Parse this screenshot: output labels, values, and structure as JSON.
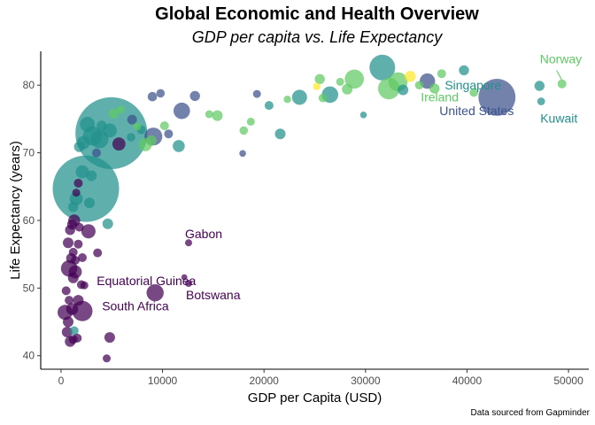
{
  "chart_data": {
    "type": "scatter",
    "title": "Global Economic and Health Overview",
    "subtitle": "GDP per capita vs. Life Expectancy",
    "xlabel": "GDP per Capita (USD)",
    "ylabel": "Life Expectancy (years)",
    "caption": "Data sourced from Gapminder",
    "xlim": [
      -2000,
      52000
    ],
    "ylim": [
      38,
      85
    ],
    "x_ticks": [
      0,
      10000,
      20000,
      30000,
      40000,
      50000
    ],
    "y_ticks": [
      40,
      50,
      60,
      70,
      80
    ],
    "grid": false,
    "legend": "none",
    "colors": {
      "purple": "#440154",
      "blue": "#3b528b",
      "teal": "#21908c",
      "green": "#5ec962",
      "yellow": "#fde725"
    },
    "points": [
      {
        "x": 49357,
        "y": 80.2,
        "size": 4.6,
        "color": "#5ec962",
        "label": "Norway"
      },
      {
        "x": 47143,
        "y": 79.9,
        "size": 8,
        "color": "#21908c",
        "label": "Singapore"
      },
      {
        "x": 40676,
        "y": 78.9,
        "size": 4,
        "color": "#5ec962",
        "label": "Ireland"
      },
      {
        "x": 42952,
        "y": 78.2,
        "size": 300,
        "color": "#3b528b",
        "label": "United States"
      },
      {
        "x": 47307,
        "y": 77.6,
        "size": 2.5,
        "color": "#21908c",
        "label": "Kuwait"
      },
      {
        "x": 12570,
        "y": 56.7,
        "size": 1.5,
        "color": "#440154",
        "label": "Gabon"
      },
      {
        "x": 12154,
        "y": 51.6,
        "size": 0.5,
        "color": "#440154",
        "label": "Equatorial Guinea"
      },
      {
        "x": 12569,
        "y": 50.7,
        "size": 1.6,
        "color": "#440154",
        "label": "Botswana"
      },
      {
        "x": 9270,
        "y": 49.3,
        "size": 44,
        "color": "#440154",
        "label": "South Africa"
      },
      {
        "x": 4960,
        "y": 72.9,
        "size": 1300,
        "color": "#21908c"
      },
      {
        "x": 2452,
        "y": 64.7,
        "size": 1100,
        "color": "#21908c"
      },
      {
        "x": 31656,
        "y": 82.6,
        "size": 127,
        "color": "#21908c"
      },
      {
        "x": 34400,
        "y": 81.3,
        "size": 12,
        "color": "#fde725"
      },
      {
        "x": 25500,
        "y": 80.9,
        "size": 8,
        "color": "#5ec962"
      },
      {
        "x": 28900,
        "y": 80.9,
        "size": 60,
        "color": "#5ec962"
      },
      {
        "x": 32300,
        "y": 79.5,
        "size": 82,
        "color": "#5ec962"
      },
      {
        "x": 33200,
        "y": 80.5,
        "size": 60,
        "color": "#5ec962"
      },
      {
        "x": 36100,
        "y": 80.6,
        "size": 33,
        "color": "#3b528b"
      },
      {
        "x": 26500,
        "y": 78.6,
        "size": 40,
        "color": "#21908c"
      },
      {
        "x": 23500,
        "y": 78.2,
        "size": 30,
        "color": "#21908c"
      },
      {
        "x": 36800,
        "y": 79.5,
        "size": 8,
        "color": "#5ec962"
      },
      {
        "x": 39700,
        "y": 82.2,
        "size": 8,
        "color": "#21908c"
      },
      {
        "x": 37500,
        "y": 81.7,
        "size": 5,
        "color": "#5ec962"
      },
      {
        "x": 33700,
        "y": 79.3,
        "size": 10,
        "color": "#21908c"
      },
      {
        "x": 35300,
        "y": 80.0,
        "size": 4,
        "color": "#5ec962"
      },
      {
        "x": 29800,
        "y": 75.6,
        "size": 1,
        "color": "#21908c"
      },
      {
        "x": 25200,
        "y": 79.8,
        "size": 2,
        "color": "#fde725"
      },
      {
        "x": 28200,
        "y": 79.4,
        "size": 10,
        "color": "#5ec962"
      },
      {
        "x": 27500,
        "y": 80.5,
        "size": 3,
        "color": "#5ec962"
      },
      {
        "x": 22300,
        "y": 77.9,
        "size": 2,
        "color": "#5ec962"
      },
      {
        "x": 20500,
        "y": 77.0,
        "size": 5,
        "color": "#21908c"
      },
      {
        "x": 18000,
        "y": 73.3,
        "size": 4,
        "color": "#5ec962"
      },
      {
        "x": 18700,
        "y": 74.6,
        "size": 3,
        "color": "#5ec962"
      },
      {
        "x": 19300,
        "y": 78.7,
        "size": 3,
        "color": "#3b528b"
      },
      {
        "x": 21600,
        "y": 72.8,
        "size": 10,
        "color": "#21908c"
      },
      {
        "x": 25800,
        "y": 78.1,
        "size": 4,
        "color": "#5ec962"
      },
      {
        "x": 17900,
        "y": 69.9,
        "size": 1,
        "color": "#3b528b"
      },
      {
        "x": 15400,
        "y": 75.5,
        "size": 10,
        "color": "#5ec962"
      },
      {
        "x": 14600,
        "y": 75.7,
        "size": 3,
        "color": "#5ec962"
      },
      {
        "x": 13200,
        "y": 78.4,
        "size": 8,
        "color": "#3b528b"
      },
      {
        "x": 11900,
        "y": 76.2,
        "size": 40,
        "color": "#3b528b"
      },
      {
        "x": 11600,
        "y": 71.0,
        "size": 15,
        "color": "#21908c"
      },
      {
        "x": 10600,
        "y": 72.8,
        "size": 5,
        "color": "#3b528b"
      },
      {
        "x": 9800,
        "y": 78.8,
        "size": 4,
        "color": "#3b528b"
      },
      {
        "x": 9000,
        "y": 78.3,
        "size": 6,
        "color": "#3b528b"
      },
      {
        "x": 9100,
        "y": 72.4,
        "size": 50,
        "color": "#3b528b"
      },
      {
        "x": 8900,
        "y": 71.8,
        "size": 10,
        "color": "#5ec962"
      },
      {
        "x": 10200,
        "y": 74.0,
        "size": 5,
        "color": "#5ec962"
      },
      {
        "x": 8300,
        "y": 71.2,
        "size": 20,
        "color": "#5ec962"
      },
      {
        "x": 7900,
        "y": 73.4,
        "size": 5,
        "color": "#21908c"
      },
      {
        "x": 7500,
        "y": 73.9,
        "size": 3,
        "color": "#5ec962"
      },
      {
        "x": 7000,
        "y": 74.9,
        "size": 7,
        "color": "#3b528b"
      },
      {
        "x": 6900,
        "y": 72.3,
        "size": 4,
        "color": "#21908c"
      },
      {
        "x": 5700,
        "y": 71.3,
        "size": 20,
        "color": "#440154"
      },
      {
        "x": 5900,
        "y": 76.4,
        "size": 3,
        "color": "#5ec962"
      },
      {
        "x": 5200,
        "y": 75.8,
        "size": 8,
        "color": "#5ec962"
      },
      {
        "x": 4800,
        "y": 73.3,
        "size": 25,
        "color": "#21908c"
      },
      {
        "x": 4000,
        "y": 74.0,
        "size": 8,
        "color": "#21908c"
      },
      {
        "x": 3800,
        "y": 72.0,
        "size": 50,
        "color": "#21908c"
      },
      {
        "x": 3500,
        "y": 70.0,
        "size": 5,
        "color": "#3b528b"
      },
      {
        "x": 3100,
        "y": 72.5,
        "size": 60,
        "color": "#21908c"
      },
      {
        "x": 2600,
        "y": 74.2,
        "size": 30,
        "color": "#21908c"
      },
      {
        "x": 2200,
        "y": 71.5,
        "size": 20,
        "color": "#21908c"
      },
      {
        "x": 1800,
        "y": 70.9,
        "size": 10,
        "color": "#21908c"
      },
      {
        "x": 2100,
        "y": 67.2,
        "size": 20,
        "color": "#21908c"
      },
      {
        "x": 3000,
        "y": 66.6,
        "size": 10,
        "color": "#21908c"
      },
      {
        "x": 2800,
        "y": 62.6,
        "size": 10,
        "color": "#21908c"
      },
      {
        "x": 1500,
        "y": 63.2,
        "size": 20,
        "color": "#21908c"
      },
      {
        "x": 1200,
        "y": 62.0,
        "size": 8,
        "color": "#21908c"
      },
      {
        "x": 1700,
        "y": 65.5,
        "size": 5,
        "color": "#440154"
      },
      {
        "x": 1500,
        "y": 64.1,
        "size": 3,
        "color": "#440154"
      },
      {
        "x": 1300,
        "y": 60.0,
        "size": 15,
        "color": "#440154"
      },
      {
        "x": 4600,
        "y": 59.5,
        "size": 10,
        "color": "#21908c"
      },
      {
        "x": 1100,
        "y": 59.4,
        "size": 8,
        "color": "#440154"
      },
      {
        "x": 1800,
        "y": 59.0,
        "size": 5,
        "color": "#440154"
      },
      {
        "x": 900,
        "y": 58.6,
        "size": 8,
        "color": "#440154"
      },
      {
        "x": 2700,
        "y": 58.4,
        "size": 25,
        "color": "#440154"
      },
      {
        "x": 700,
        "y": 56.7,
        "size": 10,
        "color": "#440154"
      },
      {
        "x": 1700,
        "y": 56.5,
        "size": 5,
        "color": "#440154"
      },
      {
        "x": 1200,
        "y": 55.3,
        "size": 5,
        "color": "#440154"
      },
      {
        "x": 3600,
        "y": 55.2,
        "size": 5,
        "color": "#440154"
      },
      {
        "x": 1000,
        "y": 54.4,
        "size": 8,
        "color": "#440154"
      },
      {
        "x": 1400,
        "y": 54.1,
        "size": 5,
        "color": "#440154"
      },
      {
        "x": 2100,
        "y": 54.5,
        "size": 5,
        "color": "#440154"
      },
      {
        "x": 800,
        "y": 52.9,
        "size": 40,
        "color": "#440154"
      },
      {
        "x": 1400,
        "y": 52.4,
        "size": 20,
        "color": "#440154"
      },
      {
        "x": 1200,
        "y": 51.5,
        "size": 10,
        "color": "#440154"
      },
      {
        "x": 2000,
        "y": 50.5,
        "size": 5,
        "color": "#440154"
      },
      {
        "x": 2300,
        "y": 50.4,
        "size": 3,
        "color": "#440154"
      },
      {
        "x": 500,
        "y": 49.6,
        "size": 5,
        "color": "#440154"
      },
      {
        "x": 1700,
        "y": 48.2,
        "size": 10,
        "color": "#440154"
      },
      {
        "x": 800,
        "y": 48.2,
        "size": 5,
        "color": "#440154"
      },
      {
        "x": 400,
        "y": 46.4,
        "size": 30,
        "color": "#440154"
      },
      {
        "x": 1100,
        "y": 46.9,
        "size": 15,
        "color": "#440154"
      },
      {
        "x": 2100,
        "y": 46.6,
        "size": 70,
        "color": "#440154"
      },
      {
        "x": 700,
        "y": 45.0,
        "size": 10,
        "color": "#440154"
      },
      {
        "x": 600,
        "y": 43.5,
        "size": 10,
        "color": "#440154"
      },
      {
        "x": 1300,
        "y": 43.7,
        "size": 5,
        "color": "#21908c"
      },
      {
        "x": 900,
        "y": 42.1,
        "size": 10,
        "color": "#440154"
      },
      {
        "x": 1600,
        "y": 42.6,
        "size": 5,
        "color": "#440154"
      },
      {
        "x": 1200,
        "y": 42.4,
        "size": 5,
        "color": "#440154"
      },
      {
        "x": 4800,
        "y": 42.7,
        "size": 10,
        "color": "#440154"
      },
      {
        "x": 4500,
        "y": 39.6,
        "size": 3,
        "color": "#440154"
      }
    ]
  }
}
